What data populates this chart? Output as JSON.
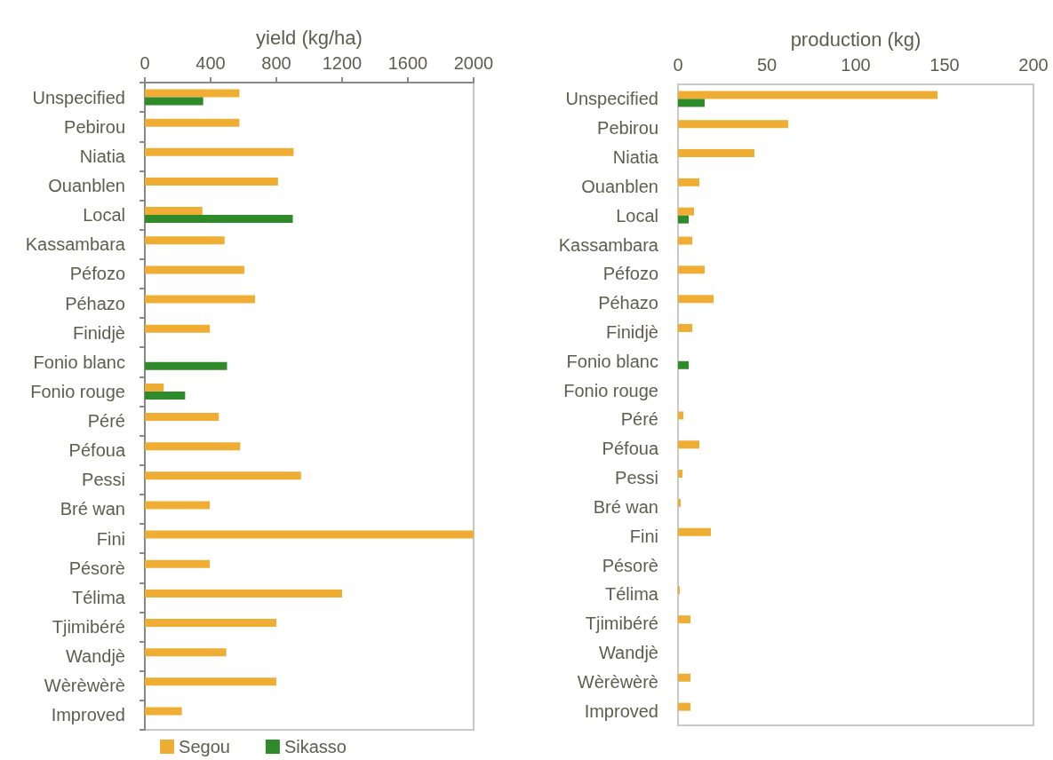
{
  "chart_data": [
    {
      "type": "bar",
      "orientation": "horizontal",
      "xlabel": "yield (kg/ha)",
      "categories": [
        "Unspecified",
        "Pebirou",
        "Niatia",
        "Ouanblen",
        "Local",
        "Kassambara",
        "Péfozo",
        "Péhazo",
        "Finidjè",
        "Fonio blanc",
        "Fonio rouge",
        "Péré",
        "Péfoua",
        "Pessi",
        "Bré wan",
        "Fini",
        "Pésorè",
        "Télima",
        "Tjimibéré",
        "Wandjè",
        "Wèrèwèrè",
        "Improved"
      ],
      "series": [
        {
          "name": "Segou",
          "color": "#efae33",
          "values": [
            575,
            575,
            905,
            810,
            350,
            485,
            605,
            670,
            395,
            null,
            115,
            450,
            580,
            950,
            395,
            2000,
            395,
            1200,
            800,
            495,
            800,
            225
          ]
        },
        {
          "name": "Sikasso",
          "color": "#2f8a2a",
          "values": [
            355,
            null,
            null,
            null,
            900,
            null,
            null,
            null,
            null,
            500,
            245,
            null,
            null,
            null,
            null,
            null,
            null,
            null,
            null,
            null,
            null,
            null
          ]
        }
      ],
      "xlim": [
        0,
        2000
      ],
      "xticks": [
        0,
        400,
        800,
        1200,
        1600,
        2000
      ],
      "legend": "bottom"
    },
    {
      "type": "bar",
      "orientation": "horizontal",
      "xlabel": "production (kg)",
      "categories": [
        "Unspecified",
        "Pebirou",
        "Niatia",
        "Ouanblen",
        "Local",
        "Kassambara",
        "Péfozo",
        "Péhazo",
        "Finidjè",
        "Fonio blanc",
        "Fonio rouge",
        "Péré",
        "Péfoua",
        "Pessi",
        "Bré wan",
        "Fini",
        "Pésorè",
        "Télima",
        "Tjimibéré",
        "Wandjè",
        "Wèrèwèrè",
        "Improved"
      ],
      "series": [
        {
          "color": "#efae33",
          "values": [
            146,
            62,
            43,
            12,
            9,
            8,
            15,
            20,
            8,
            null,
            null,
            3,
            12,
            2.5,
            1.5,
            18.5,
            null,
            1,
            7,
            null,
            7,
            7
          ]
        },
        {
          "color": "#2f8a2a",
          "values": [
            15,
            null,
            null,
            null,
            6,
            null,
            null,
            null,
            null,
            6,
            null,
            null,
            null,
            null,
            null,
            null,
            null,
            null,
            null,
            null,
            null,
            null
          ]
        }
      ],
      "xlim": [
        0,
        200
      ],
      "xticks": [
        0,
        50,
        100,
        150,
        200
      ]
    }
  ]
}
